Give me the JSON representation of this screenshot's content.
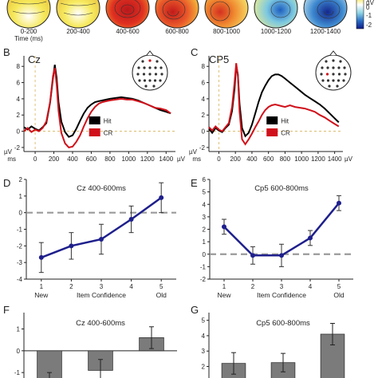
{
  "colors": {
    "hit": "#000000",
    "cr": "#d0101a",
    "line_series": "#1e1f8c",
    "bar": "#7b7b7b",
    "reference": "#9a9a9a",
    "stim_marker": "#d6b45a"
  },
  "topo_row": {
    "time_label": "Time (ms)",
    "windows": [
      "0-200",
      "200-400",
      "400-600",
      "600-800",
      "800-1000",
      "1000-1200",
      "1200-1400"
    ],
    "colorbar": {
      "unit": "µV",
      "ticks": [
        "1",
        "0",
        "-1",
        "-2"
      ]
    }
  },
  "chart_data": [
    {
      "panel": "B",
      "type": "line",
      "channel": "Cz",
      "xlabel": "ms",
      "xunit": "µV",
      "ylabel": "µV",
      "xlim": [
        -120,
        1500
      ],
      "ylim": [
        -2.5,
        9.3
      ],
      "xticks": [
        0,
        200,
        400,
        600,
        800,
        1000,
        1200,
        1400
      ],
      "yticks": [
        -2,
        0,
        2,
        4,
        6,
        8
      ],
      "legend": [
        "Hit",
        "CR"
      ],
      "series": [
        {
          "name": "Hit",
          "x": [
            -120,
            -80,
            -40,
            0,
            40,
            80,
            120,
            160,
            190,
            210,
            230,
            250,
            280,
            320,
            360,
            400,
            440,
            480,
            520,
            560,
            600,
            640,
            680,
            720,
            760,
            800,
            860,
            920,
            980,
            1040,
            1100,
            1160,
            1220,
            1280,
            1340,
            1400,
            1450
          ],
          "y": [
            0.5,
            0.2,
            0.6,
            0.3,
            0.1,
            0.5,
            1.0,
            3.5,
            6.5,
            8.2,
            6.6,
            3.6,
            1.2,
            -0.1,
            -0.7,
            -0.5,
            0.3,
            1.3,
            2.2,
            2.9,
            3.3,
            3.6,
            3.7,
            3.8,
            3.9,
            4.0,
            4.1,
            4.2,
            4.1,
            4.0,
            3.8,
            3.5,
            3.2,
            2.9,
            2.6,
            2.4,
            2.2
          ]
        },
        {
          "name": "CR",
          "x": [
            -120,
            -80,
            -40,
            0,
            40,
            80,
            120,
            160,
            190,
            210,
            230,
            250,
            280,
            320,
            360,
            400,
            440,
            480,
            520,
            560,
            600,
            640,
            680,
            720,
            760,
            800,
            860,
            920,
            980,
            1040,
            1100,
            1160,
            1220,
            1280,
            1340,
            1400,
            1450
          ],
          "y": [
            0.0,
            0.4,
            -0.1,
            0.2,
            0.0,
            0.4,
            1.2,
            3.6,
            6.8,
            7.8,
            5.8,
            2.5,
            -0.2,
            -1.5,
            -2.0,
            -1.9,
            -1.3,
            -0.5,
            0.6,
            1.6,
            2.4,
            3.0,
            3.4,
            3.6,
            3.7,
            3.8,
            3.9,
            4.0,
            3.9,
            3.9,
            3.7,
            3.5,
            3.2,
            2.9,
            2.8,
            2.6,
            2.2
          ]
        }
      ]
    },
    {
      "panel": "C",
      "type": "line",
      "channel": "CP5",
      "xlabel": "ms",
      "xunit": "µV",
      "ylabel": "µV",
      "xlim": [
        -120,
        1500
      ],
      "ylim": [
        -2.5,
        9.3
      ],
      "xticks": [
        0,
        200,
        400,
        600,
        800,
        1000,
        1200,
        1400
      ],
      "yticks": [
        -2,
        0,
        2,
        4,
        6,
        8
      ],
      "legend": [
        "Hit",
        "CR"
      ],
      "series": [
        {
          "name": "Hit",
          "x": [
            -120,
            -80,
            -40,
            0,
            40,
            80,
            120,
            160,
            190,
            210,
            230,
            250,
            280,
            320,
            360,
            400,
            440,
            480,
            520,
            560,
            600,
            640,
            680,
            720,
            760,
            800,
            860,
            920,
            980,
            1040,
            1100,
            1160,
            1220,
            1280,
            1340,
            1400,
            1450
          ],
          "y": [
            0.3,
            -0.2,
            0.4,
            0.1,
            -0.1,
            0.4,
            0.8,
            2.5,
            5.2,
            8.1,
            7.0,
            3.4,
            0.4,
            -0.6,
            -0.2,
            0.8,
            2.2,
            3.6,
            4.8,
            5.6,
            6.3,
            6.8,
            7.0,
            7.0,
            6.8,
            6.5,
            6.0,
            5.5,
            5.0,
            4.5,
            4.1,
            3.7,
            3.3,
            2.8,
            2.2,
            1.6,
            1.1
          ]
        },
        {
          "name": "CR",
          "x": [
            -120,
            -80,
            -40,
            0,
            40,
            80,
            120,
            160,
            190,
            210,
            230,
            250,
            280,
            320,
            360,
            400,
            440,
            480,
            520,
            560,
            600,
            640,
            680,
            720,
            760,
            800,
            860,
            920,
            980,
            1040,
            1100,
            1160,
            1220,
            1280,
            1340,
            1400,
            1450
          ],
          "y": [
            0.5,
            0.1,
            0.6,
            0.2,
            0.0,
            0.5,
            1.0,
            3.0,
            6.0,
            8.4,
            6.8,
            2.4,
            -1.0,
            -1.6,
            -1.0,
            -0.3,
            0.5,
            1.2,
            2.0,
            2.6,
            3.0,
            3.2,
            3.3,
            3.2,
            3.1,
            3.0,
            3.2,
            3.0,
            2.9,
            2.8,
            2.6,
            2.4,
            2.0,
            1.7,
            1.3,
            0.9,
            0.6
          ]
        }
      ]
    },
    {
      "panel": "D",
      "type": "line",
      "title": "Cz 400-600ms",
      "xlabel": "Item Confidence",
      "x": [
        1,
        2,
        3,
        4,
        5
      ],
      "xtick_labels": [
        "New",
        "",
        "",
        "",
        "Old"
      ],
      "y": [
        -2.7,
        -2.0,
        -1.6,
        -0.4,
        0.9
      ],
      "err": [
        0.9,
        0.8,
        0.9,
        0.8,
        0.9
      ],
      "xlim": [
        0.5,
        5.5
      ],
      "ylim": [
        -4,
        2
      ],
      "yticks": [
        -4,
        -3,
        -2,
        -1,
        0,
        1,
        2
      ],
      "reference_line": 0
    },
    {
      "panel": "E",
      "type": "line",
      "title": "Cp5 600-800ms",
      "xlabel": "Item Confidence",
      "x": [
        1,
        2,
        3,
        4,
        5
      ],
      "xtick_labels": [
        "New",
        "",
        "",
        "",
        "Old"
      ],
      "y": [
        2.2,
        -0.1,
        -0.1,
        1.3,
        4.1
      ],
      "err": [
        0.6,
        0.7,
        0.9,
        0.6,
        0.6
      ],
      "xlim": [
        0.5,
        5.5
      ],
      "ylim": [
        -2,
        6
      ],
      "yticks": [
        -2,
        -1,
        0,
        1,
        2,
        3,
        4,
        5,
        6
      ],
      "reference_line": 0
    },
    {
      "panel": "F",
      "type": "bar",
      "title": "Cz 400-600ms",
      "x": [
        1,
        2,
        3
      ],
      "values": [
        -1.5,
        -0.9,
        0.6
      ],
      "err": [
        0.5,
        0.5,
        0.5
      ],
      "ylim": [
        -1.25,
        1.75
      ],
      "yticks": [
        -1,
        0,
        1
      ]
    },
    {
      "panel": "G",
      "type": "bar",
      "title": "Cp5 600-800ms",
      "x": [
        1,
        2,
        3
      ],
      "values": [
        2.2,
        2.25,
        4.1
      ],
      "err": [
        0.7,
        0.6,
        0.7
      ],
      "ylim": [
        1.25,
        5.5
      ],
      "yticks": [
        2,
        3,
        4,
        5
      ]
    }
  ]
}
